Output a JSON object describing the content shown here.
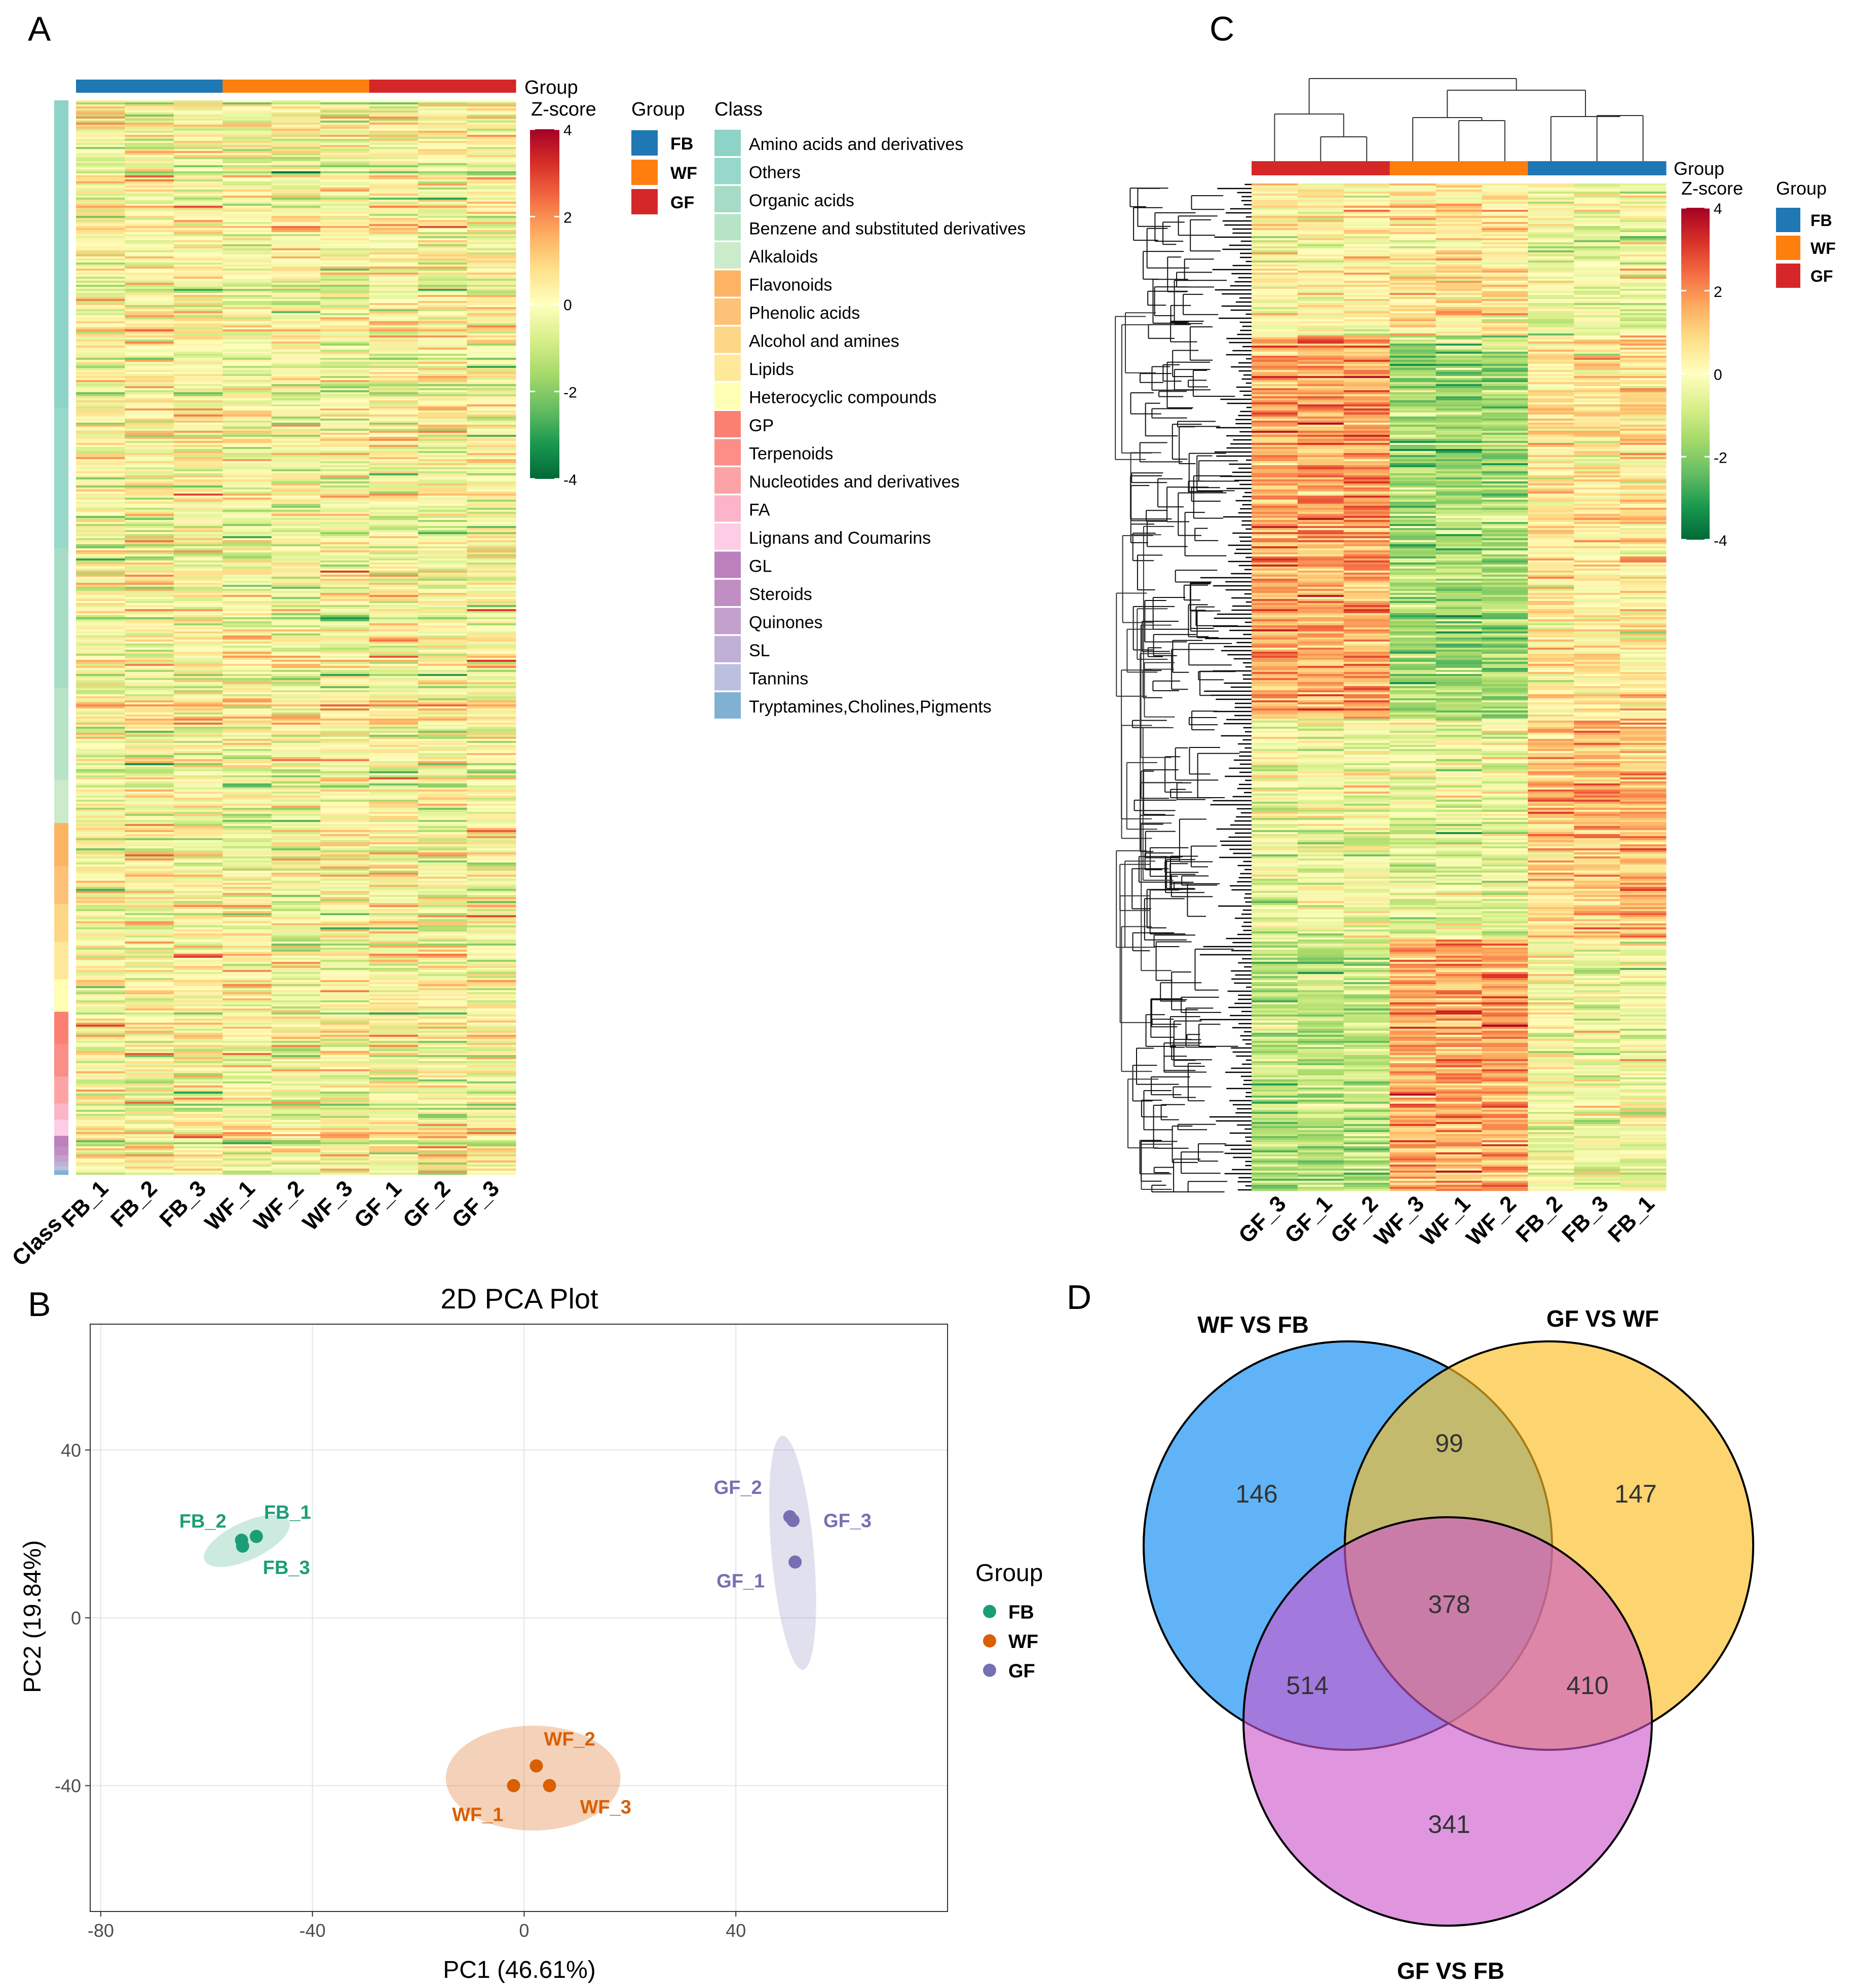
{
  "colors": {
    "FB": "#1f77b4",
    "WF": "#ff7f0e",
    "GF": "#d62728",
    "pca_FB": "#1b9e77",
    "pca_WF": "#d95f02",
    "pca_GF": "#7570b3",
    "venn_WF_FB": "#2196f3",
    "venn_GF_WF": "#fbbf24",
    "venn_GF_FB": "#cc55cc",
    "scale": [
      "#006837",
      "#1a9850",
      "#66bd63",
      "#a6d96a",
      "#d9ef8b",
      "#ffffbf",
      "#fee08b",
      "#fdae61",
      "#f46d43",
      "#d73027",
      "#a50026"
    ]
  },
  "chart_data": [
    {
      "panel": "A",
      "type": "heatmap",
      "title": "",
      "group_label": "Group",
      "scale_label": "Z-score",
      "scale_range": [
        -4,
        4
      ],
      "scale_ticks": [
        "4",
        "2",
        "0",
        "-2",
        "-4"
      ],
      "row_annotation_label": "Class",
      "columns": [
        "FB_1",
        "FB_2",
        "FB_3",
        "WF_1",
        "WF_2",
        "WF_3",
        "GF_1",
        "GF_2",
        "GF_3"
      ],
      "column_groups": [
        "FB",
        "FB",
        "FB",
        "WF",
        "WF",
        "WF",
        "GF",
        "GF",
        "GF"
      ],
      "group_legend_title": "Group",
      "group_legend": [
        "FB",
        "WF",
        "GF"
      ],
      "class_legend_title": "Class",
      "classes": [
        {
          "name": "Amino acids and derivatives",
          "color": "#8dd3c7",
          "share": 0.285
        },
        {
          "name": "Others",
          "color": "#96d8c9",
          "share": 0.13
        },
        {
          "name": "Organic acids",
          "color": "#a6dcc6",
          "share": 0.13
        },
        {
          "name": "Benzene and substituted derivatives",
          "color": "#b7e3c6",
          "share": 0.085
        },
        {
          "name": "Alkaloids",
          "color": "#cbebcb",
          "share": 0.04
        },
        {
          "name": "Flavonoids",
          "color": "#fdb462",
          "share": 0.04
        },
        {
          "name": "Phenolic acids",
          "color": "#fdc177",
          "share": 0.035
        },
        {
          "name": "Alcohol and amines",
          "color": "#fdd686",
          "share": 0.035
        },
        {
          "name": "Lipids",
          "color": "#fee89a",
          "share": 0.035
        },
        {
          "name": "Heterocyclic compounds",
          "color": "#ffffb3",
          "share": 0.03
        },
        {
          "name": "GP",
          "color": "#fb8072",
          "share": 0.03
        },
        {
          "name": "Terpenoids",
          "color": "#fb8e86",
          "share": 0.03
        },
        {
          "name": "Nucleotides and derivatives",
          "color": "#fca3a6",
          "share": 0.025
        },
        {
          "name": "FA",
          "color": "#fbb4c8",
          "share": 0.015
        },
        {
          "name": "Lignans and Coumarins",
          "color": "#fccde5",
          "share": 0.015
        },
        {
          "name": "GL",
          "color": "#bc80bd",
          "share": 0.01
        },
        {
          "name": "Steroids",
          "color": "#c08ec2",
          "share": 0.008
        },
        {
          "name": "Quinones",
          "color": "#c4a0cc",
          "share": 0.006
        },
        {
          "name": "SL",
          "color": "#c0b0d6",
          "share": 0.004
        },
        {
          "name": "Tannins",
          "color": "#bcc0df",
          "share": 0.004
        },
        {
          "name": "Tryptamines,Cholines,Pigments",
          "color": "#80b1d3",
          "share": 0.004
        }
      ]
    },
    {
      "panel": "C",
      "type": "heatmap",
      "title": "",
      "group_label": "Group",
      "scale_label": "Z-score",
      "scale_range": [
        -4,
        4
      ],
      "scale_ticks": [
        "4",
        "2",
        "0",
        "-2",
        "-4"
      ],
      "columns": [
        "GF_3",
        "GF_1",
        "GF_2",
        "WF_3",
        "WF_1",
        "WF_2",
        "FB_2",
        "FB_3",
        "FB_1"
      ],
      "column_groups": [
        "GF",
        "GF",
        "GF",
        "WF",
        "WF",
        "WF",
        "FB",
        "FB",
        "FB"
      ],
      "group_legend_title": "Group",
      "group_legend": [
        "FB",
        "WF",
        "GF"
      ],
      "row_dendrogram": true,
      "column_dendrogram": true
    },
    {
      "panel": "B",
      "type": "scatter",
      "title": "2D PCA Plot",
      "xlabel": "PC1 (46.61%)",
      "ylabel": "PC2 (19.84%)",
      "xlim": [
        -82,
        80
      ],
      "ylim": [
        -70,
        70
      ],
      "xticks": [
        -80,
        -40,
        0,
        40
      ],
      "yticks": [
        40,
        0,
        -40
      ],
      "grid": true,
      "legend_title": "Group",
      "legend": [
        "FB",
        "WF",
        "GF"
      ],
      "series": [
        {
          "name": "FB",
          "points": [
            {
              "label": "FB_1",
              "x": -50.6,
              "y": 19.4
            },
            {
              "label": "FB_2",
              "x": -53.4,
              "y": 18.5
            },
            {
              "label": "FB_3",
              "x": -53.2,
              "y": 17.1
            }
          ]
        },
        {
          "name": "WF",
          "points": [
            {
              "label": "WF_1",
              "x": -2.0,
              "y": -40.0
            },
            {
              "label": "WF_2",
              "x": 2.3,
              "y": -35.3
            },
            {
              "label": "WF_3",
              "x": 4.8,
              "y": -40.0
            }
          ]
        },
        {
          "name": "GF",
          "points": [
            {
              "label": "GF_1",
              "x": 51.2,
              "y": 13.3
            },
            {
              "label": "GF_2",
              "x": 50.2,
              "y": 24.1
            },
            {
              "label": "GF_3",
              "x": 50.8,
              "y": 23.2
            }
          ]
        }
      ]
    },
    {
      "panel": "D",
      "type": "venn",
      "sets": [
        "WF VS FB",
        "GF VS WF",
        "GF VS FB"
      ],
      "regions": {
        "WF VS FB only": 146,
        "GF VS WF only": 147,
        "GF VS FB only": 341,
        "WF VS FB & GF VS WF": 99,
        "WF VS FB & GF VS FB": 514,
        "GF VS WF & GF VS FB": 410,
        "all": 378
      }
    }
  ],
  "panels": {
    "A": "A",
    "B": "B",
    "C": "C",
    "D": "D"
  }
}
